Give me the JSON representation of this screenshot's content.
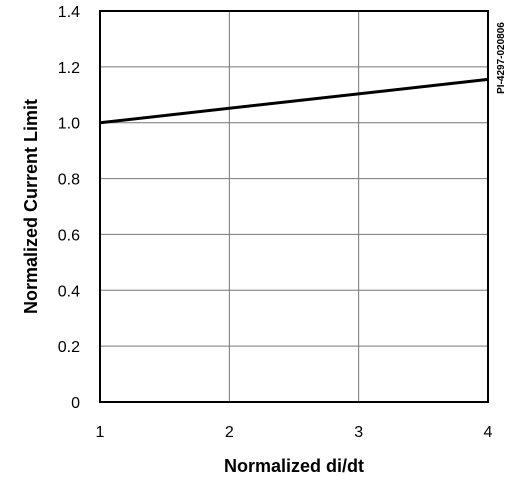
{
  "chart_data": {
    "type": "line",
    "xlabel": "Normalized di/dt",
    "ylabel": "Normalized Current Limit",
    "xlim": [
      1,
      4
    ],
    "ylim": [
      0,
      1.4
    ],
    "x_ticks": [
      "1",
      "2",
      "3",
      "4"
    ],
    "y_ticks": [
      "0",
      "0.2",
      "0.4",
      "0.6",
      "0.8",
      "1.0",
      "1.2",
      "1.4"
    ],
    "grid": true,
    "series": [
      {
        "x": [
          1,
          4
        ],
        "y": [
          1.0,
          1.155
        ]
      }
    ],
    "side_label": "PI-4297-020806"
  }
}
